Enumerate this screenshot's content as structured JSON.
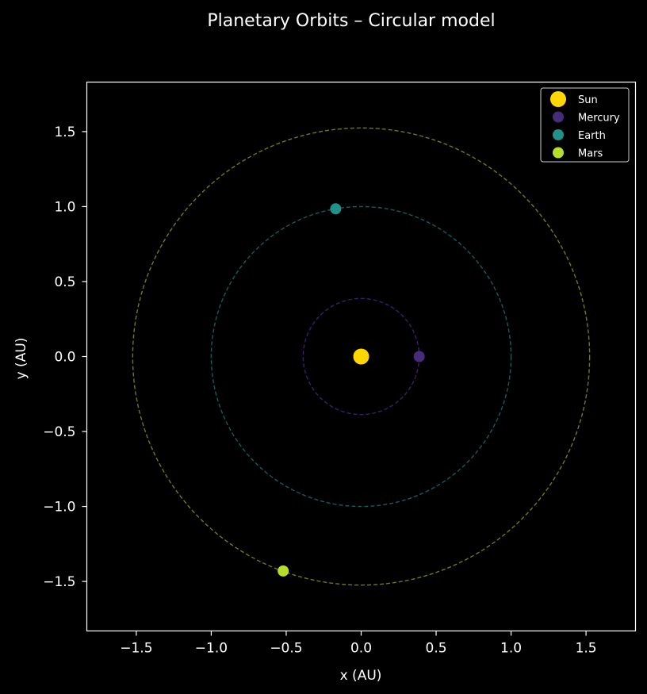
{
  "chart_data": {
    "type": "scatter",
    "title": "Planetary Orbits – Circular model",
    "xlabel": "x  (AU)",
    "ylabel": "y  (AU)",
    "xlim": [
      -1.83,
      1.83
    ],
    "ylim": [
      -1.83,
      1.83
    ],
    "xticks": [
      -1.5,
      -1.0,
      -0.5,
      0.0,
      0.5,
      1.0,
      1.5
    ],
    "yticks": [
      -1.5,
      -1.0,
      -0.5,
      0.0,
      0.5,
      1.0,
      1.5
    ],
    "xtick_labels": [
      "−1.5",
      "−1.0",
      "−0.5",
      "0.0",
      "0.5",
      "1.0",
      "1.5"
    ],
    "ytick_labels": [
      "−1.5",
      "−1.0",
      "−0.5",
      "0.0",
      "0.5",
      "1.0",
      "1.5"
    ],
    "grid": false,
    "legend_position": "top-right",
    "background": "#000000",
    "orbits": [
      {
        "name": "Mercury",
        "radius": 0.387,
        "color": "#3b1f6b"
      },
      {
        "name": "Earth",
        "radius": 1.0,
        "color": "#1b5a5a"
      },
      {
        "name": "Mars",
        "radius": 1.524,
        "color": "#6e7a1e"
      }
    ],
    "series": [
      {
        "name": "Sun",
        "x": 0.0,
        "y": 0.0,
        "color": "#ffd700",
        "marker": "large"
      },
      {
        "name": "Mercury",
        "x": 0.387,
        "y": 0.0,
        "color": "#472c7a",
        "marker": "small"
      },
      {
        "name": "Earth",
        "x": -0.17,
        "y": 0.985,
        "color": "#21918c",
        "marker": "small"
      },
      {
        "name": "Mars",
        "x": -0.52,
        "y": -1.43,
        "color": "#b5de2b",
        "marker": "small"
      }
    ]
  }
}
